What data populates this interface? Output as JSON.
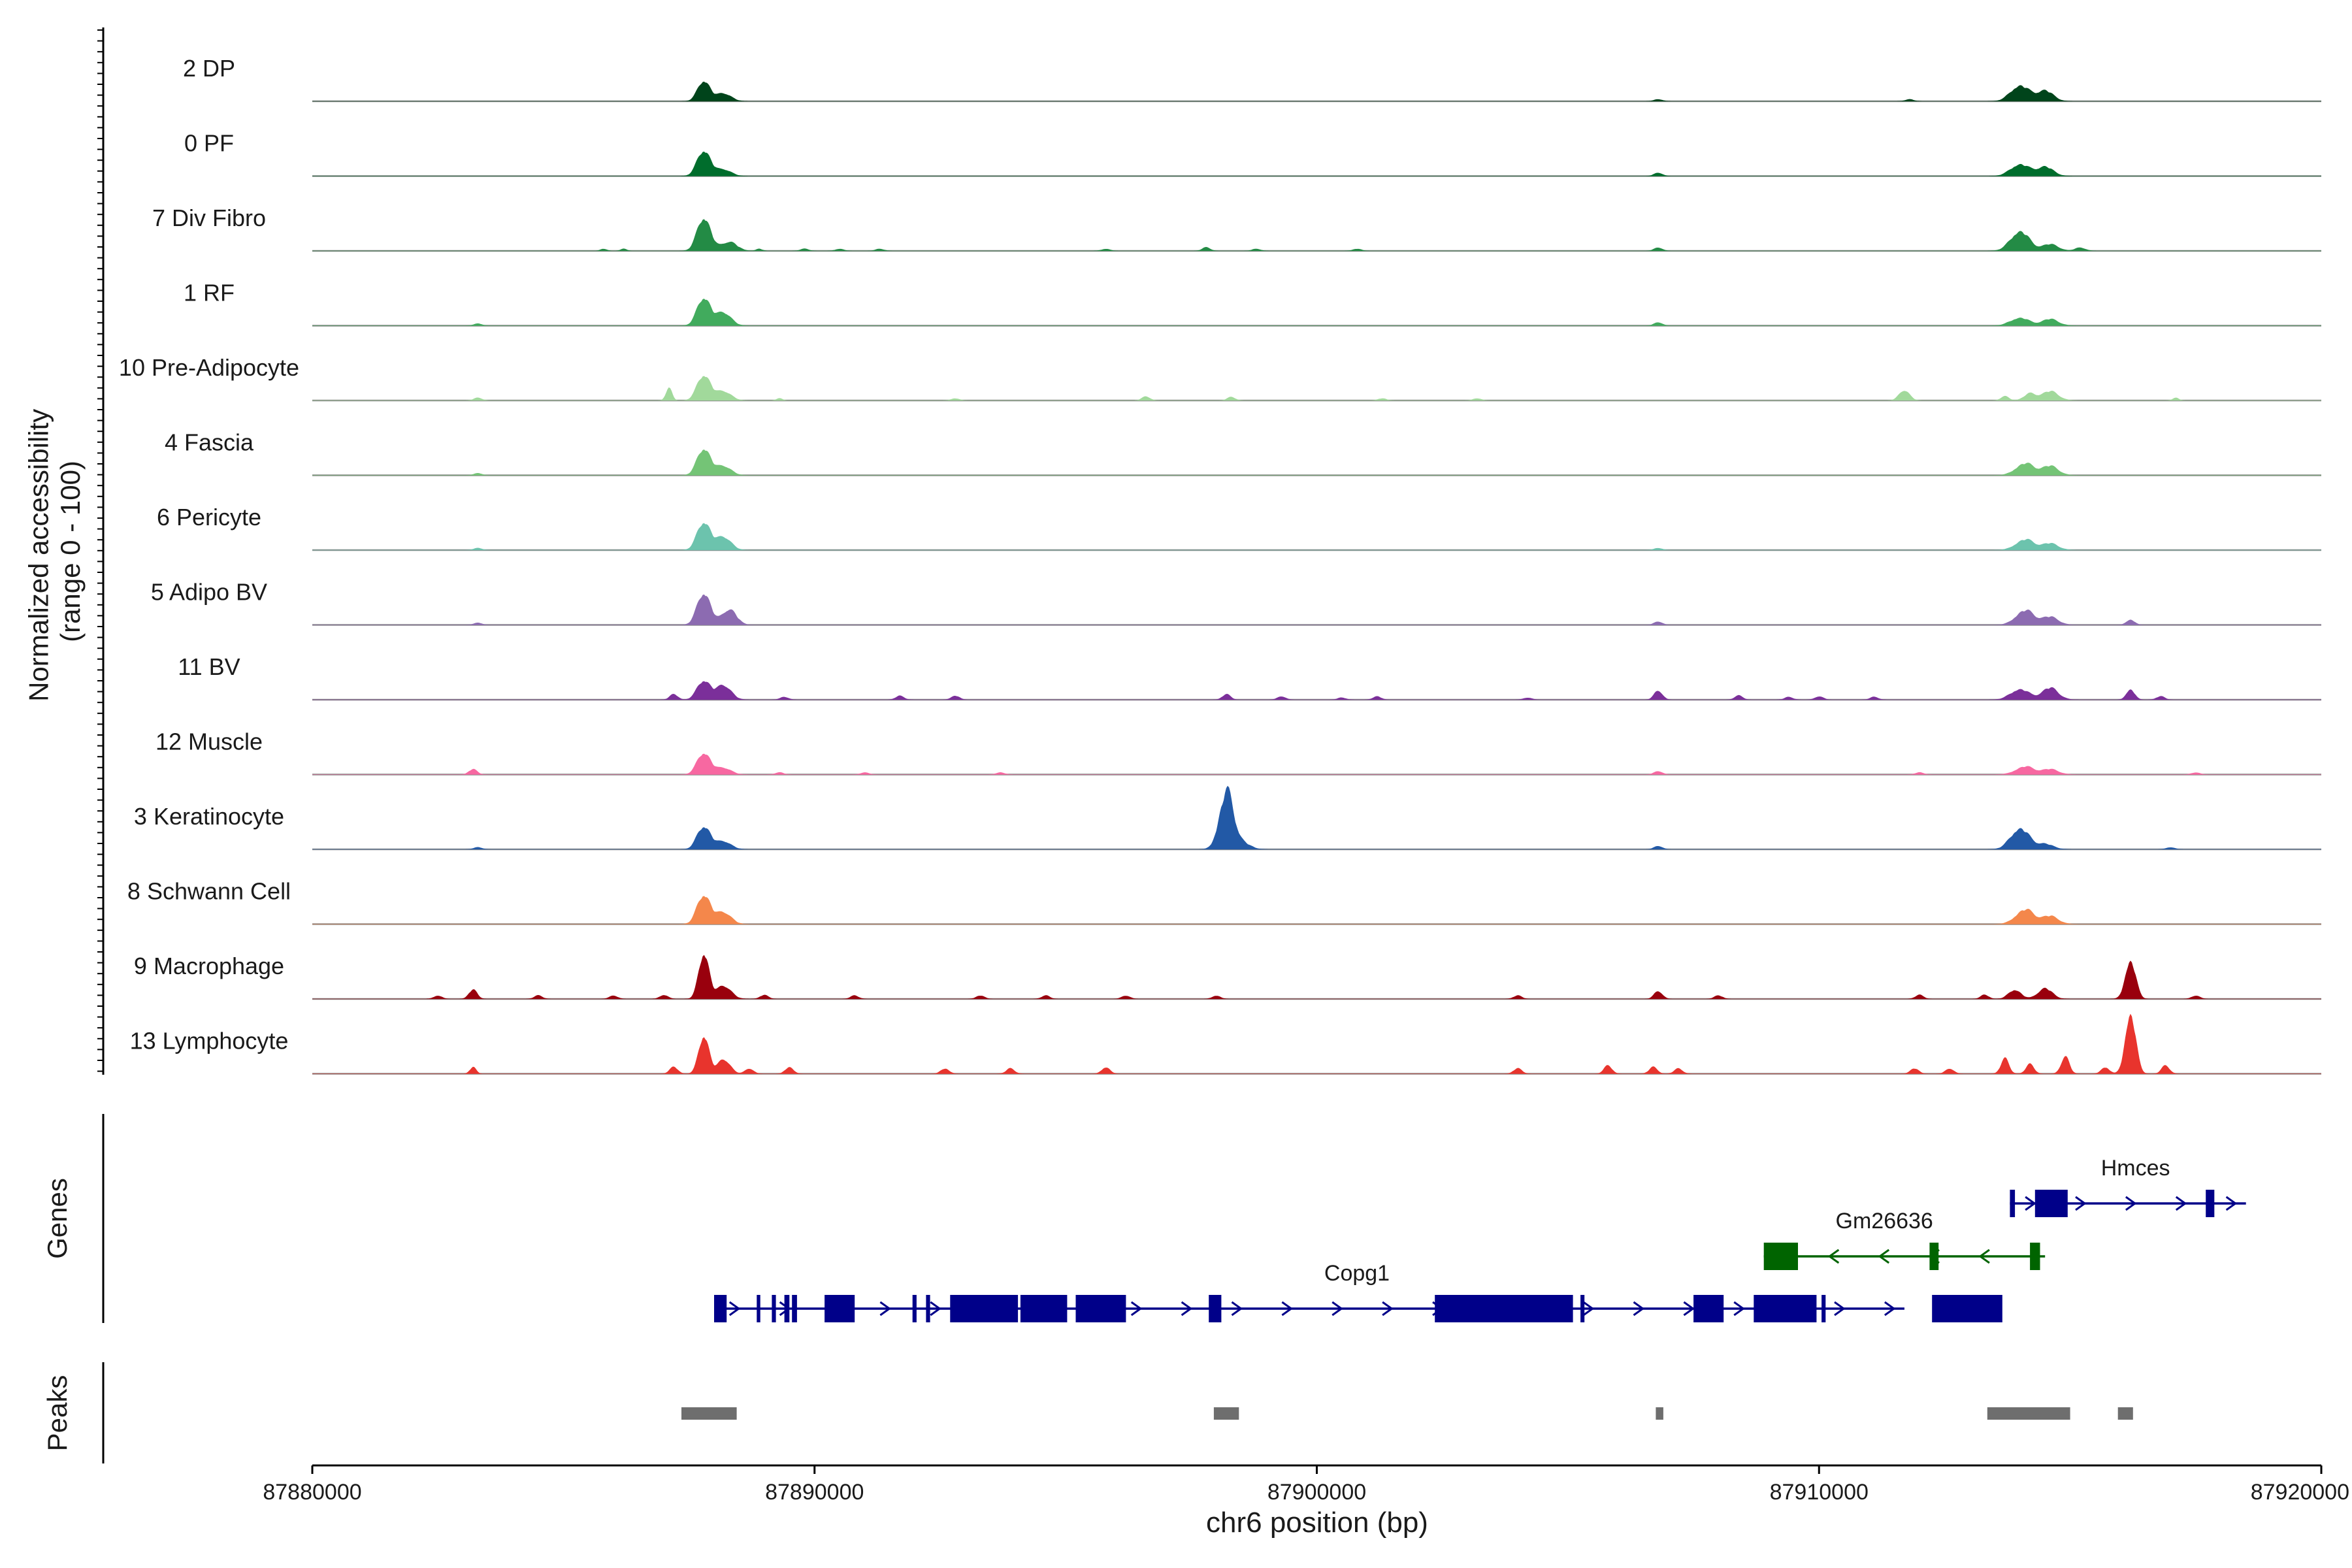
{
  "chart_data": {
    "type": "area",
    "panels": {
      "coverage_label": "Normalized accessibility\n(range 0 - 100)",
      "genes_label": "Genes",
      "peaks_label": "Peaks"
    },
    "xlabel": "chr6 position (bp)",
    "xlim": [
      87880000,
      87920000
    ],
    "xticks": [
      87880000,
      87890000,
      87900000,
      87910000,
      87920000
    ],
    "xtick_labels": [
      "87880000",
      "87890000",
      "87900000",
      "87910000",
      "87920000"
    ],
    "ylim": [
      0,
      100
    ],
    "tracks": [
      {
        "name": "2 DP",
        "color": "#00441b",
        "peaks": [
          [
            87887800,
            32,
            120
          ],
          [
            87888200,
            12,
            140
          ],
          [
            87906800,
            3,
            80
          ],
          [
            87911800,
            3,
            80
          ],
          [
            87914000,
            24,
            180
          ],
          [
            87914500,
            16,
            160
          ]
        ]
      },
      {
        "name": "0 PF",
        "color": "#006d2c",
        "peaks": [
          [
            87887800,
            40,
            130
          ],
          [
            87888200,
            10,
            140
          ],
          [
            87906800,
            5,
            80
          ],
          [
            87914000,
            18,
            180
          ],
          [
            87914500,
            14,
            160
          ]
        ]
      },
      {
        "name": "7 Div Fibro",
        "color": "#238b45",
        "peaks": [
          [
            87887800,
            52,
            130
          ],
          [
            87888300,
            14,
            150
          ],
          [
            87885800,
            3,
            60
          ],
          [
            87886200,
            3,
            60
          ],
          [
            87888900,
            3,
            60
          ],
          [
            87889800,
            3,
            80
          ],
          [
            87890500,
            3,
            80
          ],
          [
            87891300,
            3,
            80
          ],
          [
            87895800,
            3,
            80
          ],
          [
            87897800,
            5,
            80
          ],
          [
            87898800,
            3,
            80
          ],
          [
            87900800,
            3,
            80
          ],
          [
            87906800,
            5,
            80
          ],
          [
            87914000,
            30,
            180
          ],
          [
            87914600,
            10,
            160
          ],
          [
            87915200,
            5,
            100
          ]
        ]
      },
      {
        "name": "1 RF",
        "color": "#41ab5d",
        "peaks": [
          [
            87887800,
            44,
            130
          ],
          [
            87888200,
            20,
            140
          ],
          [
            87883300,
            3,
            80
          ],
          [
            87906800,
            5,
            80
          ],
          [
            87914000,
            12,
            180
          ],
          [
            87914600,
            10,
            160
          ]
        ]
      },
      {
        "name": "10 Pre-Adipocyte",
        "color": "#a1d99b",
        "peaks": [
          [
            87887800,
            40,
            130
          ],
          [
            87888200,
            14,
            140
          ],
          [
            87887100,
            18,
            60
          ],
          [
            87883300,
            4,
            80
          ],
          [
            87889300,
            3,
            60
          ],
          [
            87892800,
            3,
            80
          ],
          [
            87896600,
            6,
            80
          ],
          [
            87898300,
            5,
            80
          ],
          [
            87901300,
            3,
            80
          ],
          [
            87903200,
            3,
            80
          ],
          [
            87911700,
            16,
            100
          ],
          [
            87913700,
            6,
            80
          ],
          [
            87914200,
            10,
            120
          ],
          [
            87914600,
            14,
            160
          ],
          [
            87917100,
            4,
            60
          ]
        ]
      },
      {
        "name": "4 Fascia",
        "color": "#74c476",
        "peaks": [
          [
            87887800,
            42,
            130
          ],
          [
            87888200,
            14,
            140
          ],
          [
            87883300,
            3,
            80
          ],
          [
            87914100,
            18,
            180
          ],
          [
            87914600,
            14,
            160
          ]
        ]
      },
      {
        "name": "6 Pericyte",
        "color": "#6cc3ad",
        "peaks": [
          [
            87887800,
            44,
            130
          ],
          [
            87888200,
            20,
            140
          ],
          [
            87883300,
            3,
            80
          ],
          [
            87906800,
            3,
            80
          ],
          [
            87914100,
            16,
            180
          ],
          [
            87914600,
            10,
            160
          ]
        ]
      },
      {
        "name": "5 Adipo BV",
        "color": "#8c6bb1",
        "peaks": [
          [
            87887800,
            50,
            130
          ],
          [
            87888300,
            24,
            140
          ],
          [
            87883300,
            3,
            80
          ],
          [
            87906800,
            5,
            80
          ],
          [
            87914100,
            22,
            180
          ],
          [
            87914600,
            12,
            160
          ],
          [
            87916200,
            8,
            80
          ]
        ]
      },
      {
        "name": "11 BV",
        "color": "#7b2f9a",
        "peaks": [
          [
            87887800,
            30,
            130
          ],
          [
            87888200,
            22,
            140
          ],
          [
            87887200,
            8,
            80
          ],
          [
            87889400,
            4,
            80
          ],
          [
            87891700,
            6,
            80
          ],
          [
            87892800,
            6,
            80
          ],
          [
            87898200,
            8,
            80
          ],
          [
            87899300,
            5,
            80
          ],
          [
            87900500,
            3,
            80
          ],
          [
            87901200,
            5,
            80
          ],
          [
            87904200,
            3,
            80
          ],
          [
            87906800,
            14,
            80
          ],
          [
            87908400,
            6,
            80
          ],
          [
            87909400,
            4,
            80
          ],
          [
            87910000,
            5,
            80
          ],
          [
            87911100,
            4,
            80
          ],
          [
            87914000,
            16,
            180
          ],
          [
            87914600,
            18,
            160
          ],
          [
            87916200,
            16,
            80
          ],
          [
            87916800,
            5,
            80
          ]
        ]
      },
      {
        "name": "12 Muscle",
        "color": "#f768a1",
        "peaks": [
          [
            87887800,
            34,
            130
          ],
          [
            87888200,
            10,
            140
          ],
          [
            87883200,
            8,
            80
          ],
          [
            87889300,
            3,
            80
          ],
          [
            87891000,
            3,
            80
          ],
          [
            87893700,
            3,
            80
          ],
          [
            87906800,
            5,
            80
          ],
          [
            87912000,
            3,
            80
          ],
          [
            87914100,
            12,
            180
          ],
          [
            87914600,
            8,
            160
          ],
          [
            87917500,
            3,
            80
          ]
        ]
      },
      {
        "name": "3 Keratinocyte",
        "color": "#2259a6",
        "peaks": [
          [
            87887800,
            36,
            130
          ],
          [
            87888200,
            12,
            140
          ],
          [
            87898200,
            85,
            140
          ],
          [
            87898500,
            10,
            160
          ],
          [
            87883300,
            3,
            80
          ],
          [
            87906800,
            5,
            80
          ],
          [
            87914000,
            32,
            180
          ],
          [
            87914500,
            8,
            160
          ],
          [
            87917000,
            3,
            80
          ]
        ]
      },
      {
        "name": "8 Schwann Cell",
        "color": "#f4874b",
        "peaks": [
          [
            87887800,
            46,
            130
          ],
          [
            87888200,
            18,
            140
          ],
          [
            87914100,
            22,
            180
          ],
          [
            87914600,
            12,
            160
          ]
        ]
      },
      {
        "name": "9 Macrophage",
        "color": "#99000d",
        "peaks": [
          [
            87887800,
            72,
            100
          ],
          [
            87888200,
            20,
            140
          ],
          [
            87887000,
            6,
            80
          ],
          [
            87883200,
            14,
            80
          ],
          [
            87882500,
            5,
            80
          ],
          [
            87884500,
            5,
            80
          ],
          [
            87886000,
            5,
            80
          ],
          [
            87889000,
            6,
            80
          ],
          [
            87890800,
            5,
            80
          ],
          [
            87893300,
            5,
            80
          ],
          [
            87894600,
            5,
            80
          ],
          [
            87896200,
            5,
            80
          ],
          [
            87898000,
            5,
            80
          ],
          [
            87904000,
            5,
            80
          ],
          [
            87906800,
            12,
            80
          ],
          [
            87908000,
            5,
            80
          ],
          [
            87912000,
            6,
            80
          ],
          [
            87913300,
            6,
            80
          ],
          [
            87913900,
            14,
            120
          ],
          [
            87914500,
            16,
            140
          ],
          [
            87916200,
            60,
            100
          ],
          [
            87917500,
            5,
            80
          ]
        ]
      },
      {
        "name": "13 Lymphocyte",
        "color": "#e8342d",
        "peaks": [
          [
            87887800,
            60,
            100
          ],
          [
            87888200,
            22,
            120
          ],
          [
            87887200,
            10,
            80
          ],
          [
            87883200,
            10,
            60
          ],
          [
            87888700,
            8,
            80
          ],
          [
            87889500,
            10,
            80
          ],
          [
            87892600,
            8,
            80
          ],
          [
            87893900,
            8,
            80
          ],
          [
            87895800,
            10,
            80
          ],
          [
            87904000,
            8,
            80
          ],
          [
            87905800,
            12,
            80
          ],
          [
            87906700,
            10,
            80
          ],
          [
            87907200,
            8,
            80
          ],
          [
            87911900,
            8,
            80
          ],
          [
            87912600,
            8,
            80
          ],
          [
            87913700,
            22,
            80
          ],
          [
            87914200,
            14,
            80
          ],
          [
            87914900,
            26,
            80
          ],
          [
            87916200,
            94,
            100
          ],
          [
            87915700,
            10,
            80
          ],
          [
            87916900,
            12,
            80
          ]
        ]
      }
    ],
    "genes": [
      {
        "name": "Copg1",
        "color": "#000089",
        "strand": "+",
        "start": 87888000,
        "end": 87911700,
        "row": 0,
        "exons": [
          [
            87888000,
            87888250
          ],
          [
            87888850,
            87888920
          ],
          [
            87889150,
            87889230
          ],
          [
            87889400,
            87889500
          ],
          [
            87889550,
            87889650
          ],
          [
            87890200,
            87890800
          ],
          [
            87891950,
            87892030
          ],
          [
            87892220,
            87892300
          ],
          [
            87892700,
            87894050
          ],
          [
            87894100,
            87895030
          ],
          [
            87895200,
            87896200
          ],
          [
            87897850,
            87898100
          ],
          [
            87902350,
            87905100
          ],
          [
            87905250,
            87905330
          ],
          [
            87907500,
            87908100
          ],
          [
            87908700,
            87909950
          ],
          [
            87910050,
            87910130
          ],
          [
            87912250,
            87913650
          ]
        ]
      },
      {
        "name": "Gm26636",
        "color": "#006400",
        "strand": "-",
        "start": 87908900,
        "end": 87914500,
        "row": 1,
        "exons": [
          [
            87908900,
            87909580
          ],
          [
            87912200,
            87912380
          ],
          [
            87914200,
            87914400
          ]
        ]
      },
      {
        "name": "Hmces",
        "color": "#000089",
        "strand": "+",
        "start": 87913800,
        "end": 87918500,
        "row": 2,
        "exons": [
          [
            87913800,
            87913900
          ],
          [
            87914300,
            87914950
          ],
          [
            87917700,
            87917870
          ]
        ]
      }
    ],
    "peak_regions": [
      [
        87887350,
        87888450
      ],
      [
        87897950,
        87898450
      ],
      [
        87906750,
        87906900
      ],
      [
        87913350,
        87915000
      ],
      [
        87915950,
        87916250
      ]
    ]
  }
}
